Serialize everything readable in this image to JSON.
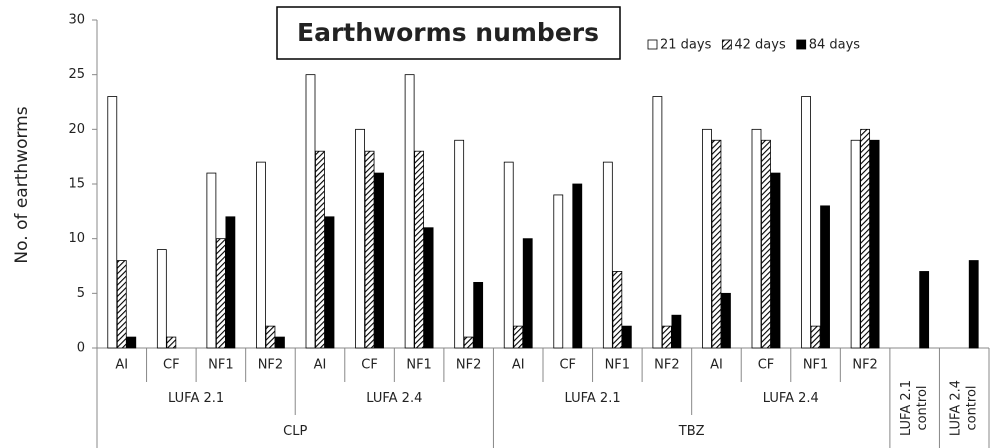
{
  "chart_data": {
    "type": "bar",
    "title": "Earthworms numbers",
    "y_label": "No. of earthworms",
    "categories": [
      "AI",
      "CF",
      "NF1",
      "NF2",
      "AI",
      "CF",
      "NF1",
      "NF2",
      "AI",
      "CF",
      "NF1",
      "NF2",
      "AI",
      "CF",
      "NF1",
      "NF2",
      [
        "LUFA 2.1",
        "control"
      ],
      [
        "LUFA 2.4",
        "control"
      ]
    ],
    "groups": [
      {
        "label": "LUFA 2.1",
        "span": 4
      },
      {
        "label": "LUFA 2.4",
        "span": 4
      },
      {
        "label": "LUFA 2.1",
        "span": 4
      },
      {
        "label": "LUFA 2.4",
        "span": 4
      }
    ],
    "supergroups": [
      {
        "label": "CLP",
        "span": 8
      },
      {
        "label": "TBZ",
        "span": 8
      }
    ],
    "series": [
      {
        "name": "21 days",
        "color": "#ffffff",
        "values": [
          23,
          9,
          16,
          17,
          25,
          20,
          25,
          19,
          17,
          14,
          17,
          23,
          20,
          20,
          23,
          19,
          null,
          null
        ]
      },
      {
        "name": "42 days",
        "color": "#000000",
        "hatch": true,
        "values": [
          8,
          1,
          10,
          2,
          18,
          18,
          18,
          1,
          2,
          0,
          7,
          2,
          19,
          19,
          2,
          20,
          null,
          null
        ]
      },
      {
        "name": "84 days",
        "color": "#000000",
        "values": [
          1,
          0,
          12,
          1,
          12,
          16,
          11,
          6,
          10,
          15,
          2,
          3,
          5,
          16,
          13,
          19,
          7,
          8
        ]
      }
    ],
    "ylim": [
      0,
      30
    ],
    "yticks": [
      0,
      5,
      10,
      15,
      20,
      25,
      30
    ],
    "legend": "top-right"
  }
}
